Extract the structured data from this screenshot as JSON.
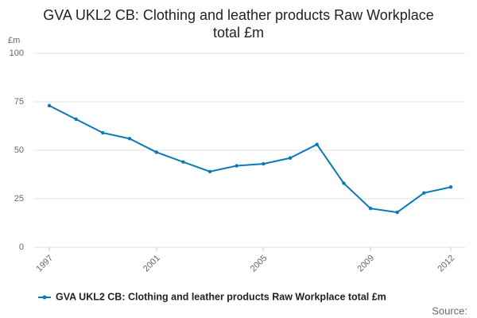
{
  "chart_data": {
    "type": "line",
    "title": "GVA UKL2 CB: Clothing and leather products Raw Workplace total £m",
    "y_label": "£m",
    "source": "Source:",
    "x": [
      1997,
      1998,
      1999,
      2000,
      2001,
      2002,
      2003,
      2004,
      2005,
      2006,
      2007,
      2008,
      2009,
      2010,
      2011,
      2012
    ],
    "series": [
      {
        "name": "GVA UKL2 CB: Clothing and leather products Raw Workplace total £m",
        "color": "#0b78b8",
        "values": [
          73,
          66,
          59,
          56,
          49,
          44,
          39,
          42,
          43,
          46,
          53,
          33,
          20,
          18,
          28,
          31
        ]
      }
    ],
    "xlim": [
      1997,
      2012
    ],
    "xticks": [
      1997,
      2001,
      2005,
      2009,
      2012
    ],
    "ylim": [
      0,
      100
    ],
    "yticks": [
      0,
      25,
      50,
      75,
      100
    ],
    "grid": true
  }
}
